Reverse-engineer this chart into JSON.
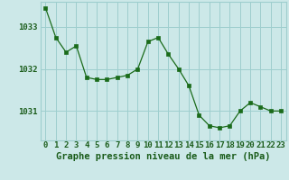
{
  "x": [
    0,
    1,
    2,
    3,
    4,
    5,
    6,
    7,
    8,
    9,
    10,
    11,
    12,
    13,
    14,
    15,
    16,
    17,
    18,
    19,
    20,
    21,
    22,
    23
  ],
  "y": [
    1033.45,
    1032.75,
    1032.4,
    1032.55,
    1031.8,
    1031.75,
    1031.75,
    1031.8,
    1031.85,
    1032.0,
    1032.65,
    1032.75,
    1032.35,
    1032.0,
    1031.6,
    1030.9,
    1030.65,
    1030.6,
    1030.65,
    1031.0,
    1031.2,
    1031.1,
    1031.0,
    1031.0
  ],
  "line_color": "#1a6b1a",
  "marker_color": "#1a6b1a",
  "bg_color": "#cce8e8",
  "grid_color": "#9ecece",
  "text_color": "#1a5c1a",
  "xlabel": "Graphe pression niveau de la mer (hPa)",
  "ylim_min": 1030.3,
  "ylim_max": 1033.6,
  "yticks": [
    1031,
    1032,
    1033
  ],
  "xticks": [
    0,
    1,
    2,
    3,
    4,
    5,
    6,
    7,
    8,
    9,
    10,
    11,
    12,
    13,
    14,
    15,
    16,
    17,
    18,
    19,
    20,
    21,
    22,
    23
  ],
  "tick_fontsize": 6.5,
  "xlabel_fontsize": 7.5
}
